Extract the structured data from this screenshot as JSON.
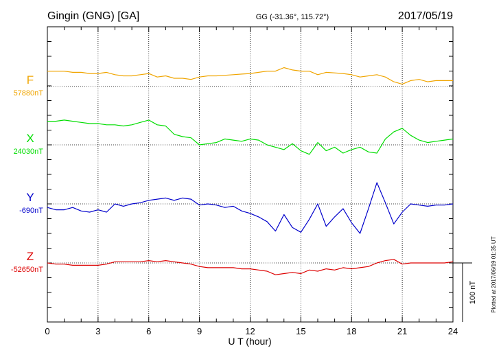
{
  "header": {
    "station": "Gingin (GNG)  [GA]",
    "coords": "GG (-31.36°, 115.72°)",
    "date": "2017/05/19"
  },
  "plotted_note": "Plotted at 2017/06/19 01:35 UT",
  "scale_label": "100 nT",
  "chart_data": {
    "type": "line",
    "title": "",
    "xlabel": "U T (hour)",
    "ylabel": "",
    "xlim": [
      0,
      24
    ],
    "xticks": [
      0,
      3,
      6,
      9,
      12,
      15,
      18,
      21,
      24
    ],
    "scale_bar_nT": 100,
    "grid": true,
    "series": [
      {
        "name": "F",
        "baseline_label": "57880nT",
        "baseline": 57880,
        "color": "#f0a500",
        "x": [
          0,
          0.5,
          1,
          1.5,
          2,
          2.5,
          3,
          3.5,
          4,
          4.5,
          5,
          5.5,
          6,
          6.5,
          7,
          7.5,
          8,
          8.5,
          9,
          9.5,
          10,
          10.5,
          11,
          11.5,
          12,
          12.5,
          13,
          13.5,
          14,
          14.5,
          15,
          15.5,
          16,
          16.5,
          17,
          17.5,
          18,
          18.5,
          19,
          19.5,
          20,
          20.5,
          21,
          21.5,
          22,
          22.5,
          23,
          23.5,
          24
        ],
        "values": [
          57906,
          57906,
          57906,
          57904,
          57904,
          57902,
          57902,
          57904,
          57900,
          57898,
          57898,
          57900,
          57902,
          57896,
          57898,
          57894,
          57894,
          57892,
          57896,
          57898,
          57898,
          57899,
          57900,
          57901,
          57902,
          57904,
          57906,
          57906,
          57912,
          57908,
          57906,
          57906,
          57900,
          57904,
          57903,
          57902,
          57900,
          57896,
          57898,
          57900,
          57896,
          57888,
          57884,
          57890,
          57892,
          57888,
          57890,
          57890,
          57890
        ]
      },
      {
        "name": "X",
        "baseline_label": "24030nT",
        "baseline": 24030,
        "color": "#00dd00",
        "x": [
          0,
          0.5,
          1,
          1.5,
          2,
          2.5,
          3,
          3.5,
          4,
          4.5,
          5,
          5.5,
          6,
          6.5,
          7,
          7.5,
          8,
          8.5,
          9,
          9.5,
          10,
          10.5,
          11,
          11.5,
          12,
          12.5,
          13,
          13.5,
          14,
          14.5,
          15,
          15.5,
          16,
          16.5,
          17,
          17.5,
          18,
          18.5,
          19,
          19.5,
          20,
          20.5,
          21,
          21.5,
          22,
          22.5,
          23,
          23.5,
          24
        ],
        "values": [
          24070,
          24070,
          24072,
          24070,
          24068,
          24066,
          24066,
          24064,
          24064,
          24062,
          24064,
          24068,
          24072,
          24064,
          24062,
          24048,
          24044,
          24042,
          24030,
          24032,
          24034,
          24040,
          24038,
          24036,
          24040,
          24038,
          24030,
          24026,
          24022,
          24032,
          24020,
          24014,
          24034,
          24020,
          24026,
          24016,
          24022,
          24026,
          24018,
          24016,
          24040,
          24052,
          24058,
          24046,
          24038,
          24034,
          24036,
          24038,
          24040
        ]
      },
      {
        "name": "Y",
        "baseline_label": "-690nT",
        "baseline": -690,
        "color": "#0000cc",
        "x": [
          0,
          0.5,
          1,
          1.5,
          2,
          2.5,
          3,
          3.5,
          4,
          4.5,
          5,
          5.5,
          6,
          6.5,
          7,
          7.5,
          8,
          8.5,
          9,
          9.5,
          10,
          10.5,
          11,
          11.5,
          12,
          12.5,
          13,
          13.5,
          14,
          14.5,
          15,
          15.5,
          16,
          16.5,
          17,
          17.5,
          18,
          18.5,
          19,
          19.5,
          20,
          20.5,
          21,
          21.5,
          22,
          22.5,
          23,
          23.5,
          24
        ],
        "values": [
          -696,
          -700,
          -700,
          -696,
          -702,
          -704,
          -700,
          -704,
          -690,
          -694,
          -690,
          -688,
          -684,
          -682,
          -680,
          -684,
          -680,
          -682,
          -692,
          -690,
          -692,
          -696,
          -694,
          -702,
          -706,
          -712,
          -720,
          -736,
          -708,
          -730,
          -738,
          -716,
          -690,
          -728,
          -712,
          -698,
          -722,
          -740,
          -698,
          -654,
          -688,
          -724,
          -704,
          -690,
          -692,
          -694,
          -692,
          -692,
          -690
        ]
      },
      {
        "name": "Z",
        "baseline_label": "-52650nT",
        "baseline": -52650,
        "color": "#dd0000",
        "x": [
          0,
          0.5,
          1,
          1.5,
          2,
          2.5,
          3,
          3.5,
          4,
          4.5,
          5,
          5.5,
          6,
          6.5,
          7,
          7.5,
          8,
          8.5,
          9,
          9.5,
          10,
          10.5,
          11,
          11.5,
          12,
          12.5,
          13,
          13.5,
          14,
          14.5,
          15,
          15.5,
          16,
          16.5,
          17,
          17.5,
          18,
          18.5,
          19,
          19.5,
          20,
          20.5,
          21,
          21.5,
          22,
          22.5,
          23,
          23.5,
          24
        ],
        "values": [
          -52650,
          -52652,
          -52652,
          -52654,
          -52654,
          -52654,
          -52654,
          -52652,
          -52648,
          -52648,
          -52648,
          -52648,
          -52646,
          -52648,
          -52646,
          -52648,
          -52650,
          -52652,
          -52656,
          -52658,
          -52658,
          -52658,
          -52658,
          -52660,
          -52660,
          -52662,
          -52664,
          -52670,
          -52668,
          -52666,
          -52668,
          -52662,
          -52664,
          -52660,
          -52662,
          -52658,
          -52660,
          -52658,
          -52656,
          -52650,
          -52646,
          -52644,
          -52652,
          -52650,
          -52650,
          -52650,
          -52650,
          -52650,
          -52648
        ]
      }
    ]
  }
}
